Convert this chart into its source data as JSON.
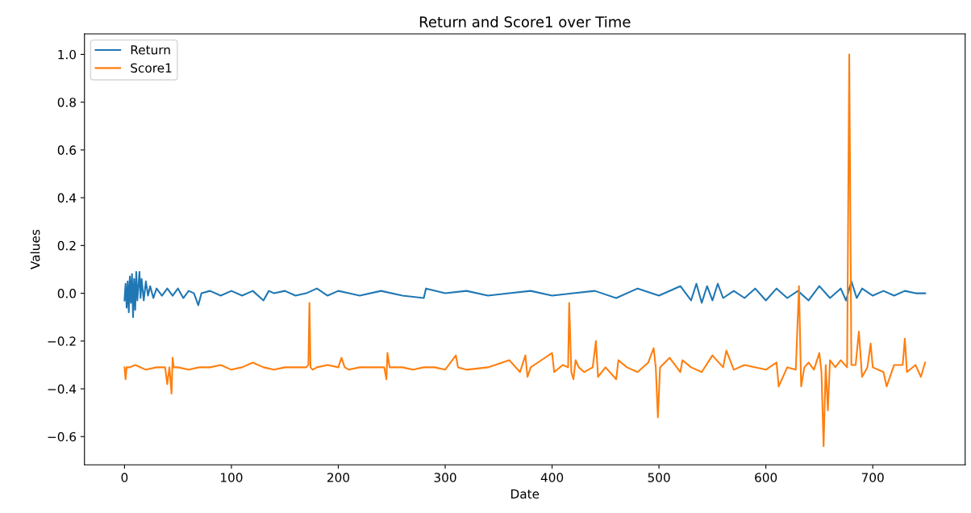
{
  "chart_data": {
    "type": "line",
    "title": "Return and Score1 over Time",
    "xlabel": "Date",
    "ylabel": "Values",
    "xlim": [
      -37.45,
      786.45
    ],
    "xticks": [
      0,
      100,
      200,
      300,
      400,
      500,
      600,
      700
    ],
    "ylim": [
      -0.718,
      1.086
    ],
    "yticks": [
      {
        "value": -0.6,
        "label": "−0.6"
      },
      {
        "value": -0.4,
        "label": "−0.4"
      },
      {
        "value": -0.2,
        "label": "−0.2"
      },
      {
        "value": 0.0,
        "label": "0.0"
      },
      {
        "value": 0.2,
        "label": "0.2"
      },
      {
        "value": 0.4,
        "label": "0.4"
      },
      {
        "value": 0.6,
        "label": "0.6"
      },
      {
        "value": 0.8,
        "label": "0.8"
      },
      {
        "value": 1.0,
        "label": "1.0"
      }
    ],
    "grid": false,
    "legend": "top left",
    "marker": "none",
    "line_style": "solid",
    "series": [
      {
        "name": "Return",
        "color": "#1f77b4",
        "x": [
          0,
          1,
          2,
          3,
          4,
          5,
          6,
          7,
          8,
          9,
          10,
          11,
          12,
          14,
          15,
          16,
          18,
          20,
          22,
          24,
          27,
          30,
          35,
          40,
          45,
          50,
          55,
          60,
          65,
          69,
          72,
          80,
          90,
          100,
          110,
          120,
          130,
          135,
          140,
          150,
          160,
          170,
          180,
          190,
          200,
          210,
          220,
          240,
          260,
          280,
          282,
          300,
          320,
          340,
          360,
          380,
          400,
          420,
          440,
          460,
          480,
          500,
          520,
          530,
          535,
          540,
          545,
          550,
          555,
          560,
          570,
          580,
          590,
          600,
          610,
          620,
          630,
          640,
          650,
          660,
          670,
          675,
          680,
          685,
          690,
          700,
          710,
          720,
          730,
          740,
          749
        ],
        "values": [
          -0.03,
          0.04,
          -0.06,
          0.05,
          -0.08,
          0.07,
          -0.04,
          0.08,
          -0.1,
          0.06,
          -0.07,
          0.09,
          -0.03,
          0.09,
          -0.02,
          0.06,
          -0.03,
          0.05,
          -0.01,
          0.03,
          -0.02,
          0.02,
          -0.01,
          0.02,
          -0.01,
          0.02,
          -0.02,
          0.01,
          0.0,
          -0.05,
          0.0,
          0.01,
          -0.01,
          0.01,
          -0.01,
          0.01,
          -0.03,
          0.01,
          0.0,
          0.01,
          -0.01,
          0.0,
          0.02,
          -0.01,
          0.01,
          0.0,
          -0.01,
          0.01,
          -0.01,
          -0.02,
          0.02,
          0.0,
          0.01,
          -0.01,
          0.0,
          0.01,
          -0.01,
          0.0,
          0.01,
          -0.02,
          0.02,
          -0.01,
          0.03,
          -0.03,
          0.04,
          -0.04,
          0.03,
          -0.03,
          0.04,
          -0.02,
          0.01,
          -0.02,
          0.02,
          -0.03,
          0.02,
          -0.02,
          0.01,
          -0.03,
          0.03,
          -0.02,
          0.02,
          -0.03,
          0.05,
          -0.02,
          0.02,
          -0.01,
          0.01,
          -0.01,
          0.01,
          0.0,
          0.0
        ]
      },
      {
        "name": "Score1",
        "color": "#ff7f0e",
        "x": [
          0,
          1,
          2,
          5,
          10,
          20,
          30,
          38,
          40,
          42,
          44,
          45,
          46,
          50,
          60,
          70,
          80,
          90,
          100,
          110,
          120,
          130,
          140,
          150,
          160,
          170,
          172,
          173,
          174,
          176,
          180,
          190,
          200,
          203,
          206,
          210,
          220,
          230,
          243,
          245,
          246,
          248,
          260,
          270,
          280,
          290,
          300,
          310,
          312,
          320,
          340,
          360,
          370,
          375,
          377,
          380,
          390,
          400,
          402,
          410,
          415,
          416,
          418,
          420,
          422,
          425,
          430,
          438,
          441,
          443,
          450,
          460,
          462,
          470,
          480,
          490,
          495,
          497,
          499,
          501,
          510,
          520,
          522,
          530,
          540,
          550,
          560,
          563,
          570,
          580,
          600,
          610,
          612,
          620,
          628,
          631,
          633,
          636,
          640,
          645,
          650,
          652,
          654,
          656,
          658,
          660,
          665,
          670,
          676,
          678,
          680,
          684,
          687,
          690,
          695,
          698,
          700,
          710,
          713,
          720,
          728,
          730,
          732,
          740,
          745,
          749
        ],
        "values": [
          -0.31,
          -0.36,
          -0.31,
          -0.31,
          -0.3,
          -0.32,
          -0.31,
          -0.31,
          -0.38,
          -0.31,
          -0.42,
          -0.27,
          -0.31,
          -0.31,
          -0.32,
          -0.31,
          -0.31,
          -0.3,
          -0.32,
          -0.31,
          -0.29,
          -0.31,
          -0.32,
          -0.31,
          -0.31,
          -0.31,
          -0.3,
          -0.04,
          -0.31,
          -0.32,
          -0.31,
          -0.3,
          -0.31,
          -0.27,
          -0.31,
          -0.32,
          -0.31,
          -0.31,
          -0.31,
          -0.36,
          -0.25,
          -0.31,
          -0.31,
          -0.32,
          -0.31,
          -0.31,
          -0.32,
          -0.26,
          -0.31,
          -0.32,
          -0.31,
          -0.28,
          -0.33,
          -0.26,
          -0.35,
          -0.31,
          -0.28,
          -0.25,
          -0.33,
          -0.3,
          -0.31,
          -0.04,
          -0.33,
          -0.36,
          -0.28,
          -0.31,
          -0.33,
          -0.31,
          -0.2,
          -0.35,
          -0.31,
          -0.36,
          -0.28,
          -0.31,
          -0.33,
          -0.29,
          -0.23,
          -0.31,
          -0.52,
          -0.31,
          -0.27,
          -0.33,
          -0.28,
          -0.31,
          -0.33,
          -0.26,
          -0.31,
          -0.24,
          -0.32,
          -0.3,
          -0.32,
          -0.29,
          -0.39,
          -0.31,
          -0.32,
          0.03,
          -0.39,
          -0.31,
          -0.29,
          -0.32,
          -0.25,
          -0.33,
          -0.64,
          -0.3,
          -0.49,
          -0.28,
          -0.31,
          -0.28,
          -0.31,
          1.0,
          -0.3,
          -0.3,
          -0.16,
          -0.35,
          -0.31,
          -0.21,
          -0.31,
          -0.33,
          -0.39,
          -0.3,
          -0.3,
          -0.19,
          -0.33,
          -0.3,
          -0.35,
          -0.29
        ]
      }
    ]
  }
}
